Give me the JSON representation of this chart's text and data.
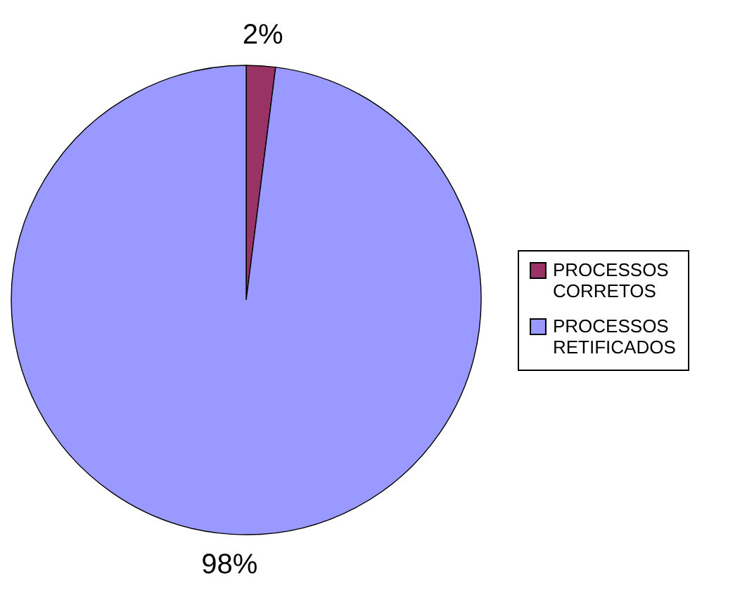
{
  "chart_data": {
    "type": "pie",
    "categories": [
      "PROCESSOS CORRETOS",
      "PROCESSOS RETIFICADOS"
    ],
    "values": [
      2,
      98
    ],
    "colors": [
      "#993366",
      "#9999ff"
    ],
    "value_labels": [
      "2%",
      "98%"
    ],
    "legend": "right"
  }
}
